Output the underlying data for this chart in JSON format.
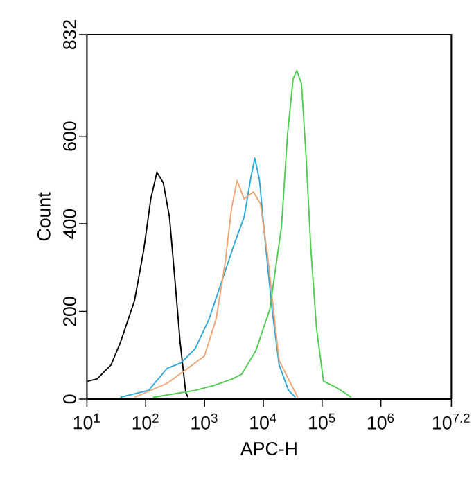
{
  "chart_data": {
    "type": "line",
    "xlabel": "APC-H",
    "ylabel": "Count",
    "log": "x",
    "xlim": [
      10,
      15848932
    ],
    "ylim": [
      0,
      832
    ],
    "xticks": [
      {
        "value": 10,
        "label": "10$^{1}$"
      },
      {
        "value": 100,
        "label": "10$^{2}$"
      },
      {
        "value": 1000,
        "label": "10$^{3}$"
      },
      {
        "value": 10000,
        "label": "10$^{4}$"
      },
      {
        "value": 100000,
        "label": "10$^{5}$"
      },
      {
        "value": 1000000,
        "label": "10$^{6}$"
      },
      {
        "value": 15848932,
        "label": "10$^{7.2}$"
      }
    ],
    "yticks": [
      0,
      200,
      400,
      600,
      832
    ],
    "series": [
      {
        "color": "#000000",
        "x": [
          10.3,
          14.9,
          25.7,
          37.3,
          64.6,
          92.7,
          122,
          155,
          199,
          254,
          321,
          385,
          480,
          526
        ],
        "values": [
          41,
          46,
          78,
          130,
          225,
          341,
          457,
          518,
          494,
          415,
          257,
          130,
          15,
          4
        ]
      },
      {
        "color": "#2aa6d8",
        "x": [
          37,
          112,
          231,
          400,
          692,
          1199,
          2075,
          3268,
          4716,
          6209,
          7194,
          8630,
          10740,
          14130,
          18590,
          26850,
          35300
        ],
        "values": [
          4,
          20,
          70,
          83,
          115,
          183,
          278,
          357,
          415,
          509,
          550,
          499,
          362,
          204,
          78,
          20,
          4
        ]
      },
      {
        "color": "#eea472",
        "x": [
          64.6,
          231,
          480,
          1000,
          1578,
          2275,
          2884,
          3589,
          4716,
          6808,
          8950,
          11780,
          15490,
          18590,
          38550
        ],
        "values": [
          4,
          36,
          67,
          99,
          183,
          316,
          436,
          499,
          457,
          473,
          446,
          331,
          183,
          88,
          4
        ]
      },
      {
        "color": "#4ccc4c",
        "x": [
          134,
          692,
          1436,
          2992,
          4297,
          7431,
          12880,
          20420,
          25820,
          32150,
          37240,
          44670,
          53540,
          64590,
          80350,
          105700,
          182800,
          316000
        ],
        "values": [
          4,
          20,
          31,
          46,
          57,
          110,
          204,
          394,
          604,
          731,
          750,
          720,
          552,
          341,
          162,
          41,
          25,
          4
        ]
      }
    ]
  }
}
